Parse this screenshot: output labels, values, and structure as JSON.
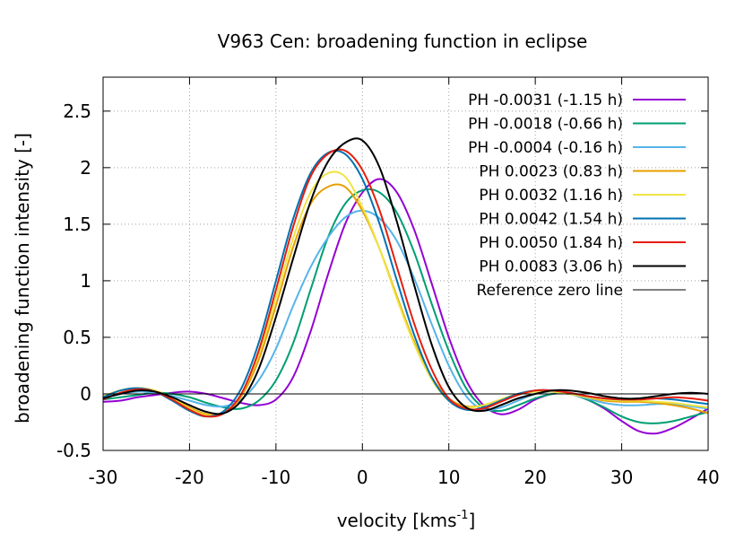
{
  "chart_data": {
    "type": "line",
    "title": "V963 Cen: broadening function in eclipse",
    "xlabel": "velocity [kms",
    "xlabel_sup": "-1",
    "xlabel_end": "]",
    "ylabel": "broadening function intensity [-]",
    "xlim": [
      -30,
      40
    ],
    "ylim": [
      -0.5,
      2.8
    ],
    "xticks": [
      -30,
      -20,
      -10,
      0,
      10,
      20,
      30,
      40
    ],
    "xtick_labels": [
      "-30",
      "-20",
      "-10",
      "0",
      "10",
      "20",
      "30",
      "40"
    ],
    "yticks": [
      -0.5,
      0,
      0.5,
      1,
      1.5,
      2,
      2.5
    ],
    "ytick_labels": [
      "-0.5",
      "0",
      "0.5",
      "1",
      "1.5",
      "2",
      "2.5"
    ],
    "grid": true,
    "legend_position": "top-right",
    "series": [
      {
        "name": "PH -0.0031 (-1.15 h)",
        "color": "#9400d3",
        "x": [
          -30,
          -28,
          -26,
          -24,
          -22,
          -20,
          -18,
          -16,
          -14,
          -12,
          -10,
          -8,
          -6,
          -4,
          -2,
          0,
          2,
          4,
          6,
          8,
          10,
          12,
          14,
          16,
          18,
          20,
          22,
          24,
          26,
          28,
          30,
          32,
          34,
          36,
          38,
          40
        ],
        "y": [
          -0.07,
          -0.06,
          -0.03,
          -0.01,
          0.01,
          0.02,
          0.0,
          -0.04,
          -0.08,
          -0.1,
          -0.05,
          0.15,
          0.55,
          1.05,
          1.5,
          1.78,
          1.9,
          1.78,
          1.45,
          0.98,
          0.5,
          0.12,
          -0.1,
          -0.18,
          -0.14,
          -0.05,
          0.0,
          0.0,
          -0.05,
          -0.13,
          -0.24,
          -0.33,
          -0.35,
          -0.3,
          -0.22,
          -0.13
        ]
      },
      {
        "name": "PH -0.0018 (-0.66 h)",
        "color": "#009e73",
        "x": [
          -30,
          -28,
          -26,
          -24,
          -22,
          -20,
          -18,
          -16,
          -14,
          -12,
          -10,
          -8,
          -6,
          -4,
          -2,
          0,
          2,
          4,
          6,
          8,
          10,
          12,
          14,
          16,
          18,
          20,
          22,
          24,
          26,
          28,
          30,
          32,
          34,
          36,
          38,
          40
        ],
        "y": [
          -0.05,
          -0.03,
          -0.01,
          0.01,
          0.0,
          -0.03,
          -0.08,
          -0.12,
          -0.13,
          -0.06,
          0.12,
          0.45,
          0.92,
          1.38,
          1.68,
          1.8,
          1.78,
          1.6,
          1.25,
          0.8,
          0.38,
          0.05,
          -0.12,
          -0.15,
          -0.1,
          -0.04,
          0.0,
          0.0,
          -0.05,
          -0.12,
          -0.2,
          -0.25,
          -0.26,
          -0.24,
          -0.2,
          -0.16
        ]
      },
      {
        "name": "PH -0.0004 (-0.16 h)",
        "color": "#56b4e9",
        "x": [
          -30,
          -28,
          -26,
          -24,
          -22,
          -20,
          -18,
          -16,
          -14,
          -12,
          -10,
          -8,
          -6,
          -4,
          -2,
          0,
          2,
          4,
          6,
          8,
          10,
          12,
          14,
          16,
          18,
          20,
          22,
          24,
          26,
          28,
          30,
          32,
          34,
          36,
          38,
          40
        ],
        "y": [
          -0.03,
          0.0,
          0.02,
          0.01,
          -0.02,
          -0.06,
          -0.1,
          -0.11,
          -0.05,
          0.12,
          0.4,
          0.78,
          1.12,
          1.38,
          1.56,
          1.62,
          1.55,
          1.35,
          1.02,
          0.62,
          0.25,
          -0.02,
          -0.14,
          -0.12,
          -0.06,
          0.0,
          0.02,
          0.0,
          -0.04,
          -0.08,
          -0.1,
          -0.1,
          -0.09,
          -0.09,
          -0.11,
          -0.13
        ]
      },
      {
        "name": "PH 0.0023 (0.83 h)",
        "color": "#e69f00",
        "x": [
          -30,
          -28,
          -26,
          -24,
          -22,
          -20,
          -18,
          -16,
          -14,
          -12,
          -10,
          -8,
          -6,
          -4,
          -2,
          0,
          2,
          4,
          6,
          8,
          10,
          12,
          14,
          16,
          18,
          20,
          22,
          24,
          26,
          28,
          30,
          32,
          34,
          36,
          38,
          40
        ],
        "y": [
          -0.02,
          0.03,
          0.05,
          0.03,
          -0.04,
          -0.12,
          -0.18,
          -0.17,
          -0.02,
          0.3,
          0.78,
          1.3,
          1.68,
          1.83,
          1.83,
          1.62,
          1.28,
          0.86,
          0.46,
          0.15,
          -0.04,
          -0.11,
          -0.1,
          -0.05,
          0.0,
          0.02,
          0.02,
          0.0,
          -0.03,
          -0.06,
          -0.07,
          -0.07,
          -0.08,
          -0.1,
          -0.13,
          -0.17
        ]
      },
      {
        "name": "PH 0.0032 (1.16 h)",
        "color": "#f0e442",
        "x": [
          -30,
          -28,
          -26,
          -24,
          -22,
          -20,
          -18,
          -16,
          -14,
          -12,
          -10,
          -8,
          -6,
          -4,
          -2,
          0,
          2,
          4,
          6,
          8,
          10,
          12,
          14,
          16,
          18,
          20,
          22,
          24,
          26,
          28,
          30,
          32,
          34,
          36,
          38,
          40
        ],
        "y": [
          -0.02,
          0.03,
          0.05,
          0.03,
          -0.04,
          -0.13,
          -0.19,
          -0.17,
          0.0,
          0.35,
          0.85,
          1.38,
          1.78,
          1.95,
          1.92,
          1.65,
          1.28,
          0.84,
          0.44,
          0.13,
          -0.06,
          -0.12,
          -0.1,
          -0.05,
          0.0,
          0.02,
          0.02,
          0.0,
          -0.03,
          -0.05,
          -0.06,
          -0.06,
          -0.07,
          -0.08,
          -0.1,
          -0.12
        ]
      },
      {
        "name": "PH 0.0042 (1.54 h)",
        "color": "#0072b2",
        "x": [
          -30,
          -28,
          -26,
          -24,
          -22,
          -20,
          -18,
          -16,
          -14,
          -12,
          -10,
          -8,
          -6,
          -4,
          -2,
          0,
          2,
          4,
          6,
          8,
          10,
          12,
          14,
          16,
          18,
          20,
          22,
          24,
          26,
          28,
          30,
          32,
          34,
          36,
          38,
          40
        ],
        "y": [
          -0.03,
          0.03,
          0.05,
          0.02,
          -0.06,
          -0.15,
          -0.2,
          -0.15,
          0.05,
          0.45,
          1.0,
          1.55,
          1.95,
          2.13,
          2.12,
          1.9,
          1.5,
          1.0,
          0.52,
          0.15,
          -0.06,
          -0.14,
          -0.12,
          -0.06,
          0.0,
          0.03,
          0.03,
          0.01,
          -0.02,
          -0.04,
          -0.05,
          -0.04,
          -0.04,
          -0.05,
          -0.07,
          -0.09
        ]
      },
      {
        "name": "PH 0.0050 (1.84 h)",
        "color": "#e51e10",
        "x": [
          -30,
          -28,
          -26,
          -24,
          -22,
          -20,
          -18,
          -16,
          -14,
          -12,
          -10,
          -8,
          -6,
          -4,
          -2,
          0,
          2,
          4,
          6,
          8,
          10,
          12,
          14,
          16,
          18,
          20,
          22,
          24,
          26,
          28,
          30,
          32,
          34,
          36,
          38,
          40
        ],
        "y": [
          -0.05,
          0.01,
          0.04,
          0.02,
          -0.05,
          -0.14,
          -0.2,
          -0.17,
          0.0,
          0.38,
          0.92,
          1.48,
          1.92,
          2.12,
          2.15,
          1.98,
          1.62,
          1.12,
          0.62,
          0.22,
          -0.04,
          -0.13,
          -0.13,
          -0.07,
          -0.01,
          0.03,
          0.03,
          0.01,
          -0.02,
          -0.04,
          -0.05,
          -0.05,
          -0.04,
          -0.03,
          -0.04,
          -0.06
        ]
      },
      {
        "name": "PH 0.0083 (3.06 h)",
        "color": "#000000",
        "x": [
          -30,
          -28,
          -26,
          -24,
          -22,
          -20,
          -18,
          -16,
          -14,
          -12,
          -10,
          -8,
          -6,
          -4,
          -2,
          0,
          2,
          4,
          6,
          8,
          10,
          12,
          14,
          16,
          18,
          20,
          22,
          24,
          26,
          28,
          30,
          32,
          34,
          36,
          38,
          40
        ],
        "y": [
          -0.04,
          0.0,
          0.03,
          0.02,
          -0.03,
          -0.1,
          -0.16,
          -0.17,
          -0.06,
          0.22,
          0.68,
          1.2,
          1.7,
          2.05,
          2.22,
          2.24,
          2.0,
          1.52,
          0.96,
          0.44,
          0.06,
          -0.12,
          -0.15,
          -0.1,
          -0.04,
          0.0,
          0.03,
          0.03,
          0.01,
          -0.02,
          -0.04,
          -0.04,
          -0.02,
          0.0,
          0.01,
          0.0
        ]
      },
      {
        "name": "Reference zero line",
        "color": "#000000",
        "x": [
          -30,
          40
        ],
        "y": [
          0,
          0
        ]
      }
    ]
  }
}
